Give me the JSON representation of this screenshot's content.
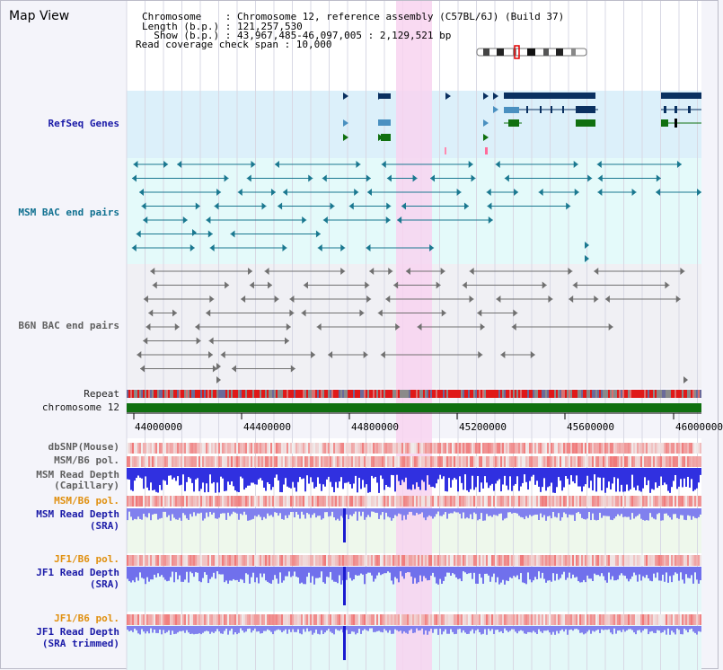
{
  "map_view": {
    "title": "Map View",
    "info_lines": [
      "Chromosome    : Chromosome 12, reference assembly (C57BL/6J) (Build 37)",
      "Length (b.p.) : 121,257,530",
      "  Show (b.p.) : 43,967,485-46,097,005 : 2,129,521 bp",
      "Read coverage check span : 10,000"
    ]
  },
  "tracks": {
    "refseq_genes": "RefSeq Genes",
    "msm_bac": "MSM BAC end pairs",
    "b6n_bac": "B6N BAC end pairs",
    "repeat": "Repeat",
    "chromosome": "chromosome 12",
    "dbsnp": "dbSNP(Mouse)",
    "msm_b6_pol": "MSM/B6 pol.",
    "msm_depth_capillary_1": "MSM Read Depth",
    "msm_depth_capillary_2": "(Capillary)",
    "msm_b6_pol_2": "MSM/B6 pol.",
    "msm_depth_sra_1": "MSM Read Depth",
    "msm_depth_sra_2": "(SRA)",
    "jf1_b6_pol": "JF1/B6 pol.",
    "jf1_depth_sra_1": "JF1 Read Depth",
    "jf1_depth_sra_2": "(SRA)",
    "jf1_b6_pol_2": "JF1/B6 pol.",
    "jf1_depth_trim_1": "JF1 Read Depth",
    "jf1_depth_trim_2": "(SRA trimmed)"
  },
  "axis": {
    "ticks": [
      "44000000",
      "44400000",
      "44800000",
      "45200000",
      "45600000",
      "46000000"
    ]
  },
  "colors": {
    "highlight": "#f8d4f0",
    "refseq_bg": "#dcf0fa",
    "msm_bac_bg": "#e4fafa",
    "b6n_bac_bg": "#f0f0f4",
    "gene_dark": "#0a3060",
    "gene_mid": "#4a90c0",
    "gene_green": "#107010",
    "msm_feature": "#1a7890",
    "b6n_feature": "#707070",
    "chromosome_bar": "#107010"
  }
}
